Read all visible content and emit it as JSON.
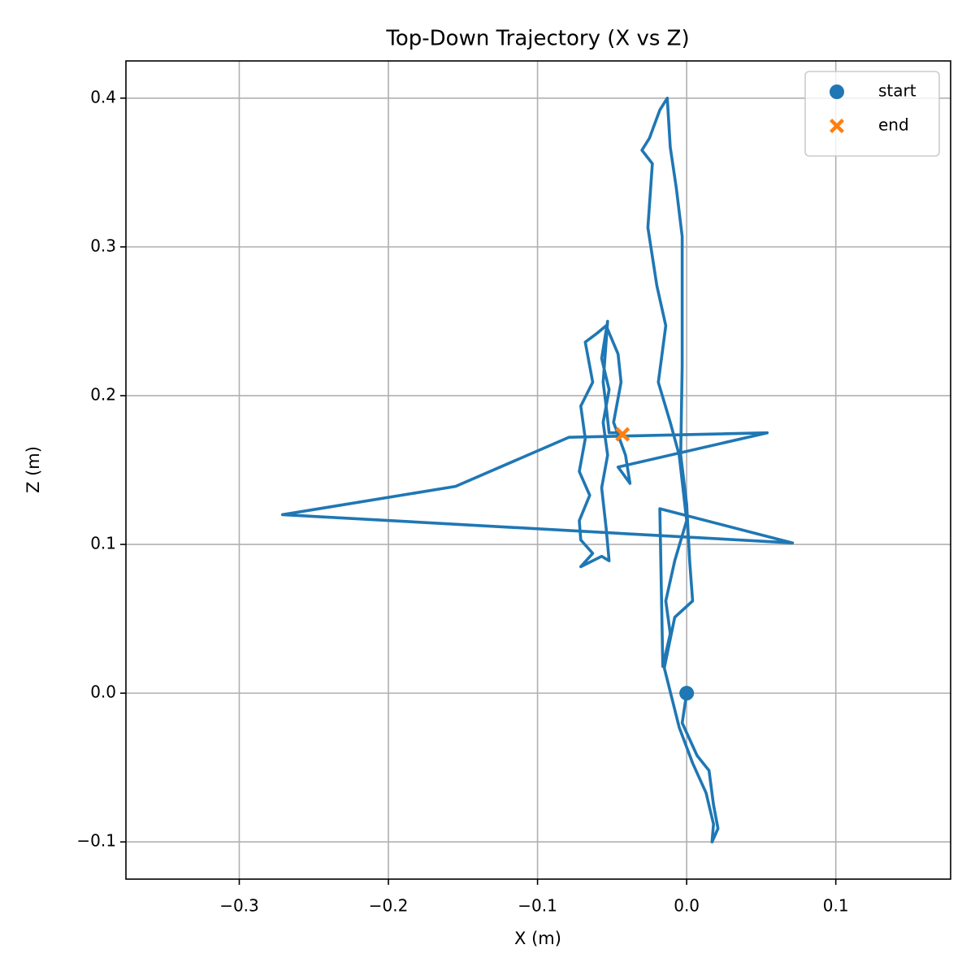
{
  "chart_data": {
    "type": "line",
    "title": "Top-Down Trajectory (X vs Z)",
    "x_label": "X (m)",
    "y_label": "Z (m)",
    "xlim": [
      -0.376,
      0.177
    ],
    "ylim": [
      -0.125,
      0.425
    ],
    "xticks": [
      {
        "value": -0.3,
        "label": "−0.3"
      },
      {
        "value": -0.2,
        "label": "−0.2"
      },
      {
        "value": -0.1,
        "label": "−0.1"
      },
      {
        "value": 0,
        "label": "0.0"
      },
      0.1
    ],
    "yticks": [
      {
        "value": -0.1,
        "label": "−0.1"
      },
      {
        "value": 0,
        "label": "0.0"
      },
      0.1,
      0.2,
      0.3,
      0.4
    ],
    "grid": true,
    "legend": "upper right",
    "series": [
      {
        "color": "#1f77b4",
        "kind": "line",
        "x": [
          0,
          -0.003,
          0.007,
          0.015,
          0.018,
          0.021,
          0.017,
          0.018,
          0.013,
          0.004,
          -0.005,
          -0.015,
          -0.008,
          0.004,
          0.002,
          0,
          -0.004,
          -0.003,
          -0.003,
          -0.007,
          -0.011,
          -0.013,
          -0.018,
          -0.025,
          -0.03,
          -0.023,
          -0.026,
          -0.02,
          -0.014,
          -0.019,
          -0.011,
          -0.005,
          0,
          -0.008,
          -0.014,
          -0.011,
          -0.016,
          -0.018,
          0.071,
          -0.271,
          -0.155,
          -0.079,
          0.054,
          -0.046,
          -0.038,
          -0.041,
          -0.049,
          -0.044,
          -0.046,
          -0.054,
          -0.06,
          -0.068,
          -0.063,
          -0.071,
          -0.068,
          -0.072,
          -0.065,
          -0.072,
          -0.071,
          -0.063,
          -0.071,
          -0.057,
          -0.052,
          -0.054,
          -0.057,
          -0.053,
          -0.056,
          -0.052,
          -0.057,
          -0.053,
          -0.056,
          -0.054,
          -0.052,
          -0.044
        ],
        "y": [
          0,
          -0.02,
          -0.042,
          -0.052,
          -0.075,
          -0.091,
          -0.1,
          -0.088,
          -0.067,
          -0.047,
          -0.023,
          0.017,
          0.051,
          0.062,
          0.089,
          0.127,
          0.16,
          0.22,
          0.307,
          0.34,
          0.367,
          0.4,
          0.392,
          0.373,
          0.365,
          0.356,
          0.313,
          0.274,
          0.247,
          0.209,
          0.182,
          0.16,
          0.116,
          0.089,
          0.062,
          0.04,
          0.018,
          0.124,
          0.101,
          0.12,
          0.139,
          0.172,
          0.175,
          0.152,
          0.141,
          0.16,
          0.182,
          0.209,
          0.228,
          0.247,
          0.242,
          0.236,
          0.209,
          0.193,
          0.171,
          0.149,
          0.133,
          0.116,
          0.103,
          0.094,
          0.085,
          0.092,
          0.089,
          0.111,
          0.138,
          0.16,
          0.182,
          0.204,
          0.225,
          0.25,
          0.209,
          0.193,
          0.175,
          0.175
        ]
      },
      {
        "name": "start",
        "color": "#1f77b4",
        "kind": "circle",
        "x": [
          0
        ],
        "y": [
          0
        ]
      },
      {
        "name": "end",
        "color": "#ff7f0e",
        "kind": "x",
        "x": [
          -0.043
        ],
        "y": [
          0.174
        ]
      }
    ]
  }
}
